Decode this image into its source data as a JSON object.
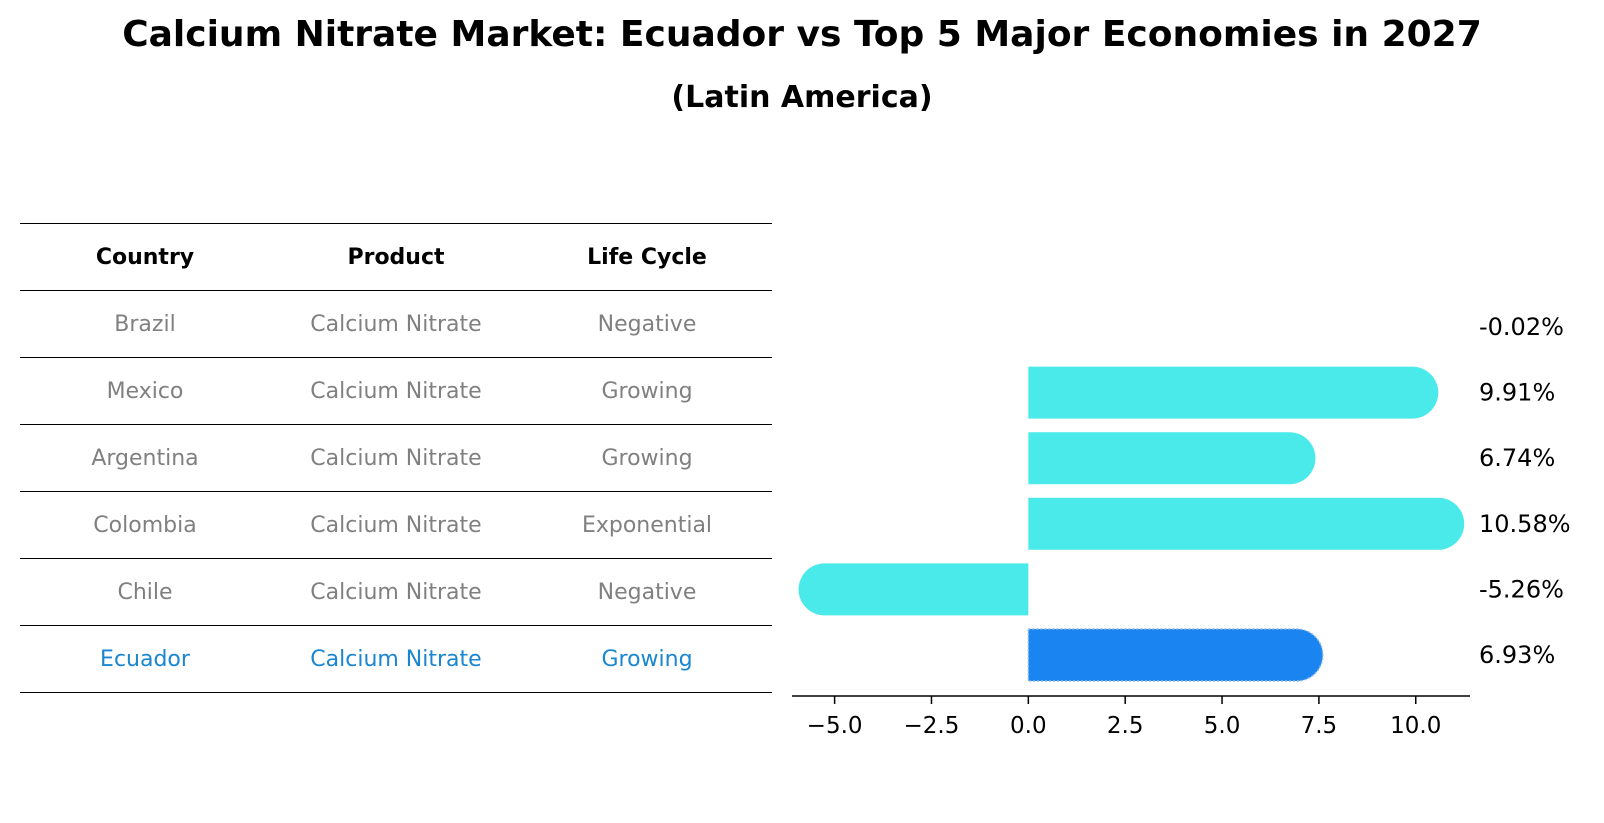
{
  "title": "Calcium Nitrate Market: Ecuador vs Top 5 Major Economies in 2027",
  "subtitle": "(Latin America)",
  "table": {
    "headers": [
      "Country",
      "Product",
      "Life Cycle"
    ],
    "rows": [
      {
        "country": "Brazil",
        "product": "Calcium Nitrate",
        "life_cycle": "Negative"
      },
      {
        "country": "Mexico",
        "product": "Calcium Nitrate",
        "life_cycle": "Growing"
      },
      {
        "country": "Argentina",
        "product": "Calcium Nitrate",
        "life_cycle": "Growing"
      },
      {
        "country": "Colombia",
        "product": "Calcium Nitrate",
        "life_cycle": "Exponential"
      },
      {
        "country": "Chile",
        "product": "Calcium Nitrate",
        "life_cycle": "Negative"
      },
      {
        "country": "Ecuador",
        "product": "Calcium Nitrate",
        "life_cycle": "Growing"
      }
    ]
  },
  "colors": {
    "bar": "#4aeaea",
    "highlight_bar": "#1a84f0",
    "highlight_text": "#1a86d0",
    "row_text": "#808080"
  },
  "chart_data": {
    "type": "bar",
    "orientation": "horizontal",
    "categories": [
      "Brazil",
      "Mexico",
      "Argentina",
      "Colombia",
      "Chile",
      "Ecuador"
    ],
    "values": [
      -0.02,
      9.91,
      6.74,
      10.58,
      -5.26,
      6.93
    ],
    "value_labels": [
      "-0.02%",
      "9.91%",
      "6.74%",
      "10.58%",
      "-5.26%",
      "6.93%"
    ],
    "highlight": "Ecuador",
    "xlim": [
      -6.1,
      11.4
    ],
    "xticks": [
      -5.0,
      -2.5,
      0.0,
      2.5,
      5.0,
      7.5,
      10.0
    ],
    "xtick_labels": [
      "−5.0",
      "−2.5",
      "0.0",
      "2.5",
      "5.0",
      "7.5",
      "10.0"
    ]
  }
}
